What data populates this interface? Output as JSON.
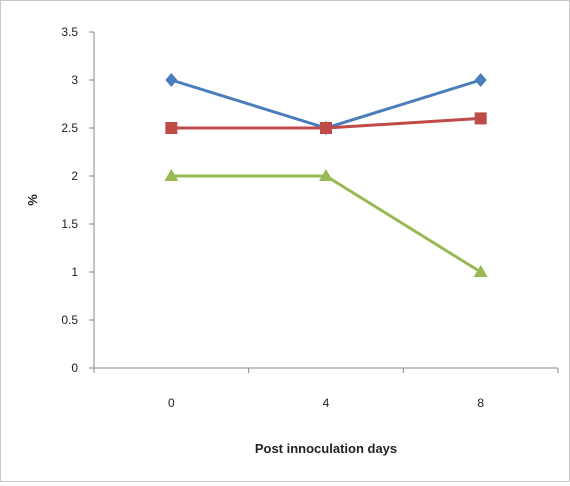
{
  "chart_data": {
    "type": "line",
    "xlabel": "Post innoculation days",
    "ylabel": "%",
    "categories": [
      "0",
      "4",
      "8"
    ],
    "ylim": [
      0,
      3.5
    ],
    "yticks": [
      "0",
      "0.5",
      "1",
      "1.5",
      "2",
      "2.5",
      "3",
      "3.5"
    ],
    "grid": false,
    "legend": "none",
    "series": [
      {
        "values": [
          3,
          2.5,
          3
        ],
        "color": "#4a7ebb",
        "marker": "diamond"
      },
      {
        "values": [
          2.5,
          2.5,
          2.6
        ],
        "color": "#be4b48",
        "marker": "square"
      },
      {
        "values": [
          2,
          2,
          1
        ],
        "color": "#98b954",
        "marker": "triangle"
      }
    ]
  }
}
